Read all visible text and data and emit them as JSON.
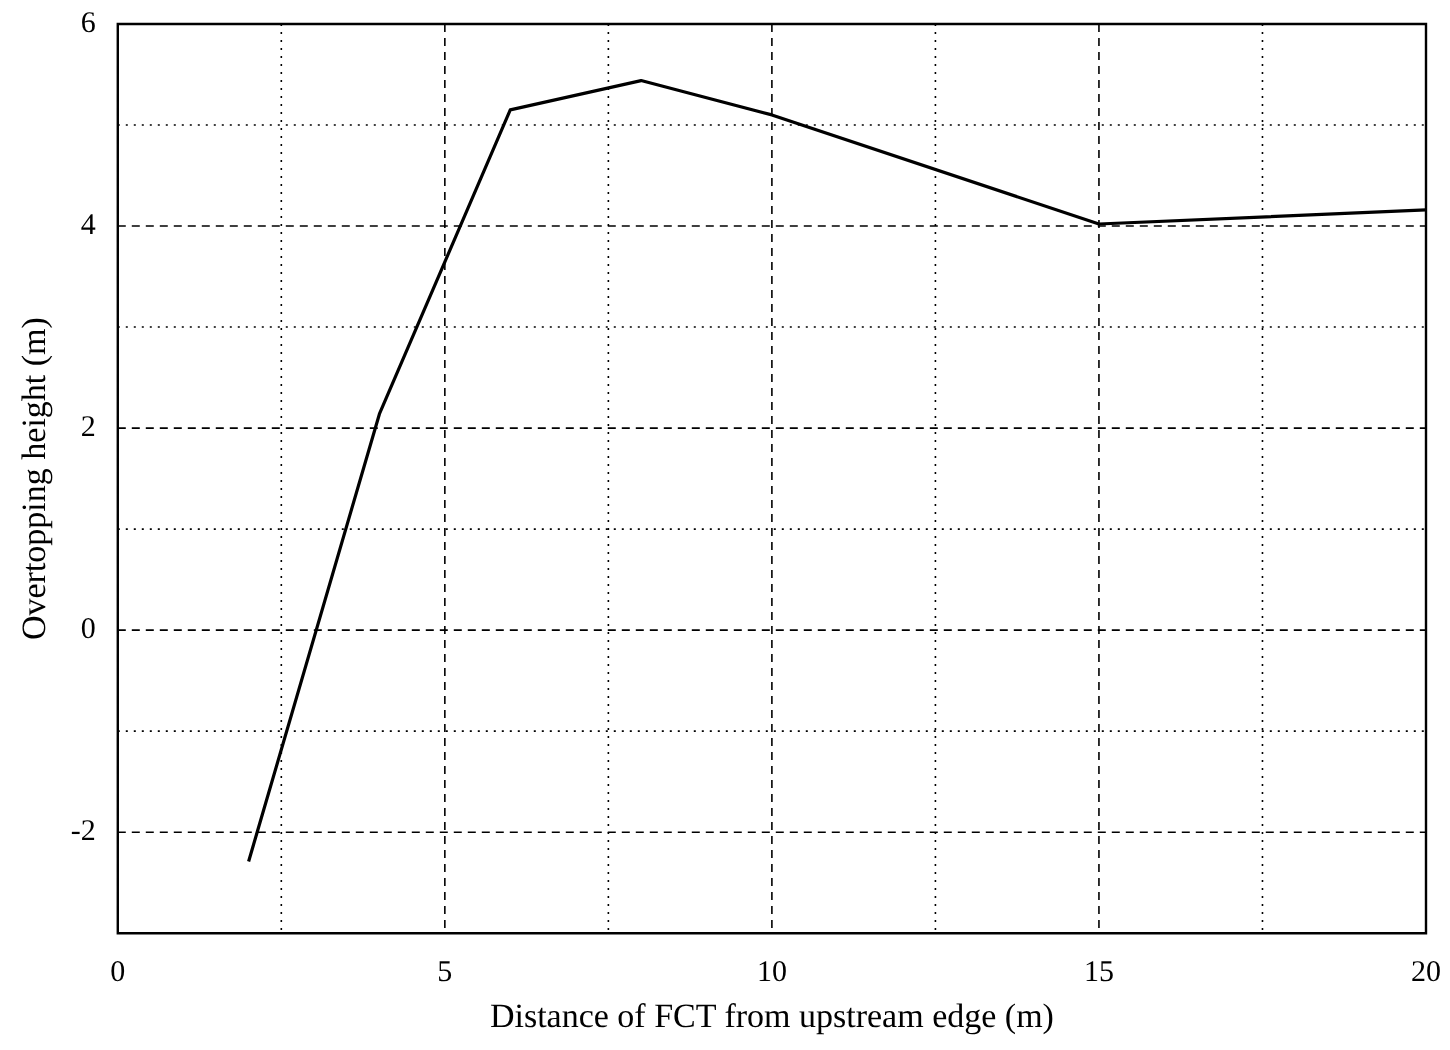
{
  "chart_data": {
    "type": "line",
    "xlabel": "Distance of FCT from upstream edge (m)",
    "ylabel": "Overtopping height (m)",
    "x": [
      2,
      4,
      6,
      8,
      10,
      15,
      20
    ],
    "series": [
      {
        "color": "#000000",
        "values": [
          -2.29,
          2.14,
          5.15,
          5.44,
          5.1,
          4.02,
          4.16
        ]
      }
    ],
    "xlim": [
      0,
      20
    ],
    "xticks": [
      0,
      {
        "value": 2.5,
        "label": null
      },
      5,
      {
        "value": 7.5,
        "label": null
      },
      10,
      {
        "value": 12.5,
        "label": null
      },
      15,
      {
        "value": 17.5,
        "label": null
      },
      20
    ],
    "ylim": [
      -3,
      6
    ],
    "yticks": [
      -2,
      {
        "value": -1,
        "label": null
      },
      0,
      {
        "value": 1,
        "label": null
      },
      2,
      {
        "value": 3,
        "label": null
      },
      4,
      {
        "value": 5,
        "label": null
      },
      6
    ],
    "grid": true,
    "legend": false,
    "marker": "none",
    "line_style": "solid"
  }
}
